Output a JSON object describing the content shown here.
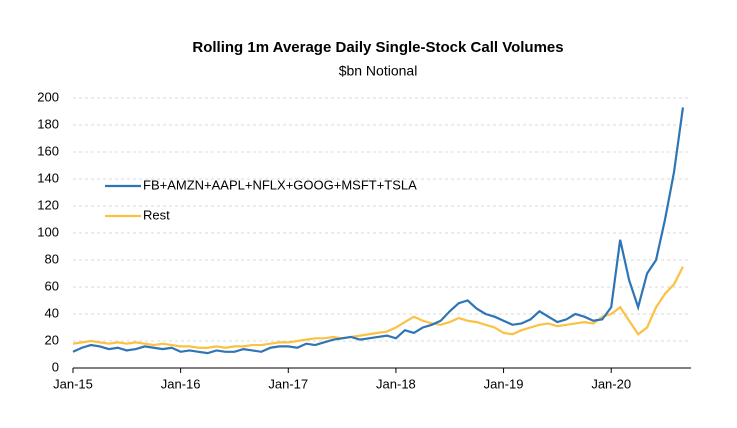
{
  "chart_data": {
    "type": "line",
    "title": "Rolling 1m Average Daily Single-Stock Call Volumes",
    "subtitle": "$bn Notional",
    "categories": [
      "Jan-15",
      null,
      null,
      null,
      null,
      null,
      null,
      null,
      null,
      null,
      null,
      null,
      "Jan-16",
      null,
      null,
      null,
      null,
      null,
      null,
      null,
      null,
      null,
      null,
      null,
      "Jan-17",
      null,
      null,
      null,
      null,
      null,
      null,
      null,
      null,
      null,
      null,
      null,
      "Jan-18",
      null,
      null,
      null,
      null,
      null,
      null,
      null,
      null,
      null,
      null,
      null,
      "Jan-19",
      null,
      null,
      null,
      null,
      null,
      null,
      null,
      null,
      null,
      null,
      null,
      "Jan-20",
      null,
      null,
      null,
      null,
      null,
      null,
      null,
      null
    ],
    "series": [
      {
        "name": "FB+AMZN+AAPL+NFLX+GOOG+MSFT+TSLA",
        "color": "#2e75b6",
        "values": [
          12,
          15,
          17,
          16,
          14,
          15,
          13,
          14,
          16,
          15,
          14,
          15,
          12,
          13,
          12,
          11,
          13,
          12,
          12,
          14,
          13,
          12,
          15,
          16,
          16,
          15,
          18,
          17,
          19,
          21,
          22,
          23,
          21,
          22,
          23,
          24,
          22,
          28,
          26,
          30,
          32,
          35,
          42,
          48,
          50,
          44,
          40,
          38,
          35,
          32,
          33,
          36,
          42,
          38,
          34,
          36,
          40,
          38,
          35,
          36,
          45,
          95,
          65,
          45,
          70,
          80,
          110,
          145,
          193
        ]
      },
      {
        "name": "Rest",
        "color": "#fbc142",
        "values": [
          18,
          19,
          20,
          19,
          18,
          19,
          18,
          19,
          18,
          17,
          18,
          17,
          16,
          16,
          15,
          15,
          16,
          15,
          16,
          16,
          17,
          17,
          18,
          19,
          19,
          20,
          21,
          22,
          22,
          23,
          22,
          23,
          24,
          25,
          26,
          27,
          30,
          34,
          38,
          35,
          33,
          32,
          34,
          37,
          35,
          34,
          32,
          30,
          26,
          25,
          28,
          30,
          32,
          33,
          31,
          32,
          33,
          34,
          33,
          38,
          40,
          45,
          35,
          25,
          30,
          45,
          55,
          62,
          75
        ]
      }
    ],
    "ylim": [
      0,
      200
    ],
    "yticks": [
      0,
      20,
      40,
      60,
      80,
      100,
      120,
      140,
      160,
      180,
      200
    ],
    "grid": true,
    "legend": "left"
  }
}
